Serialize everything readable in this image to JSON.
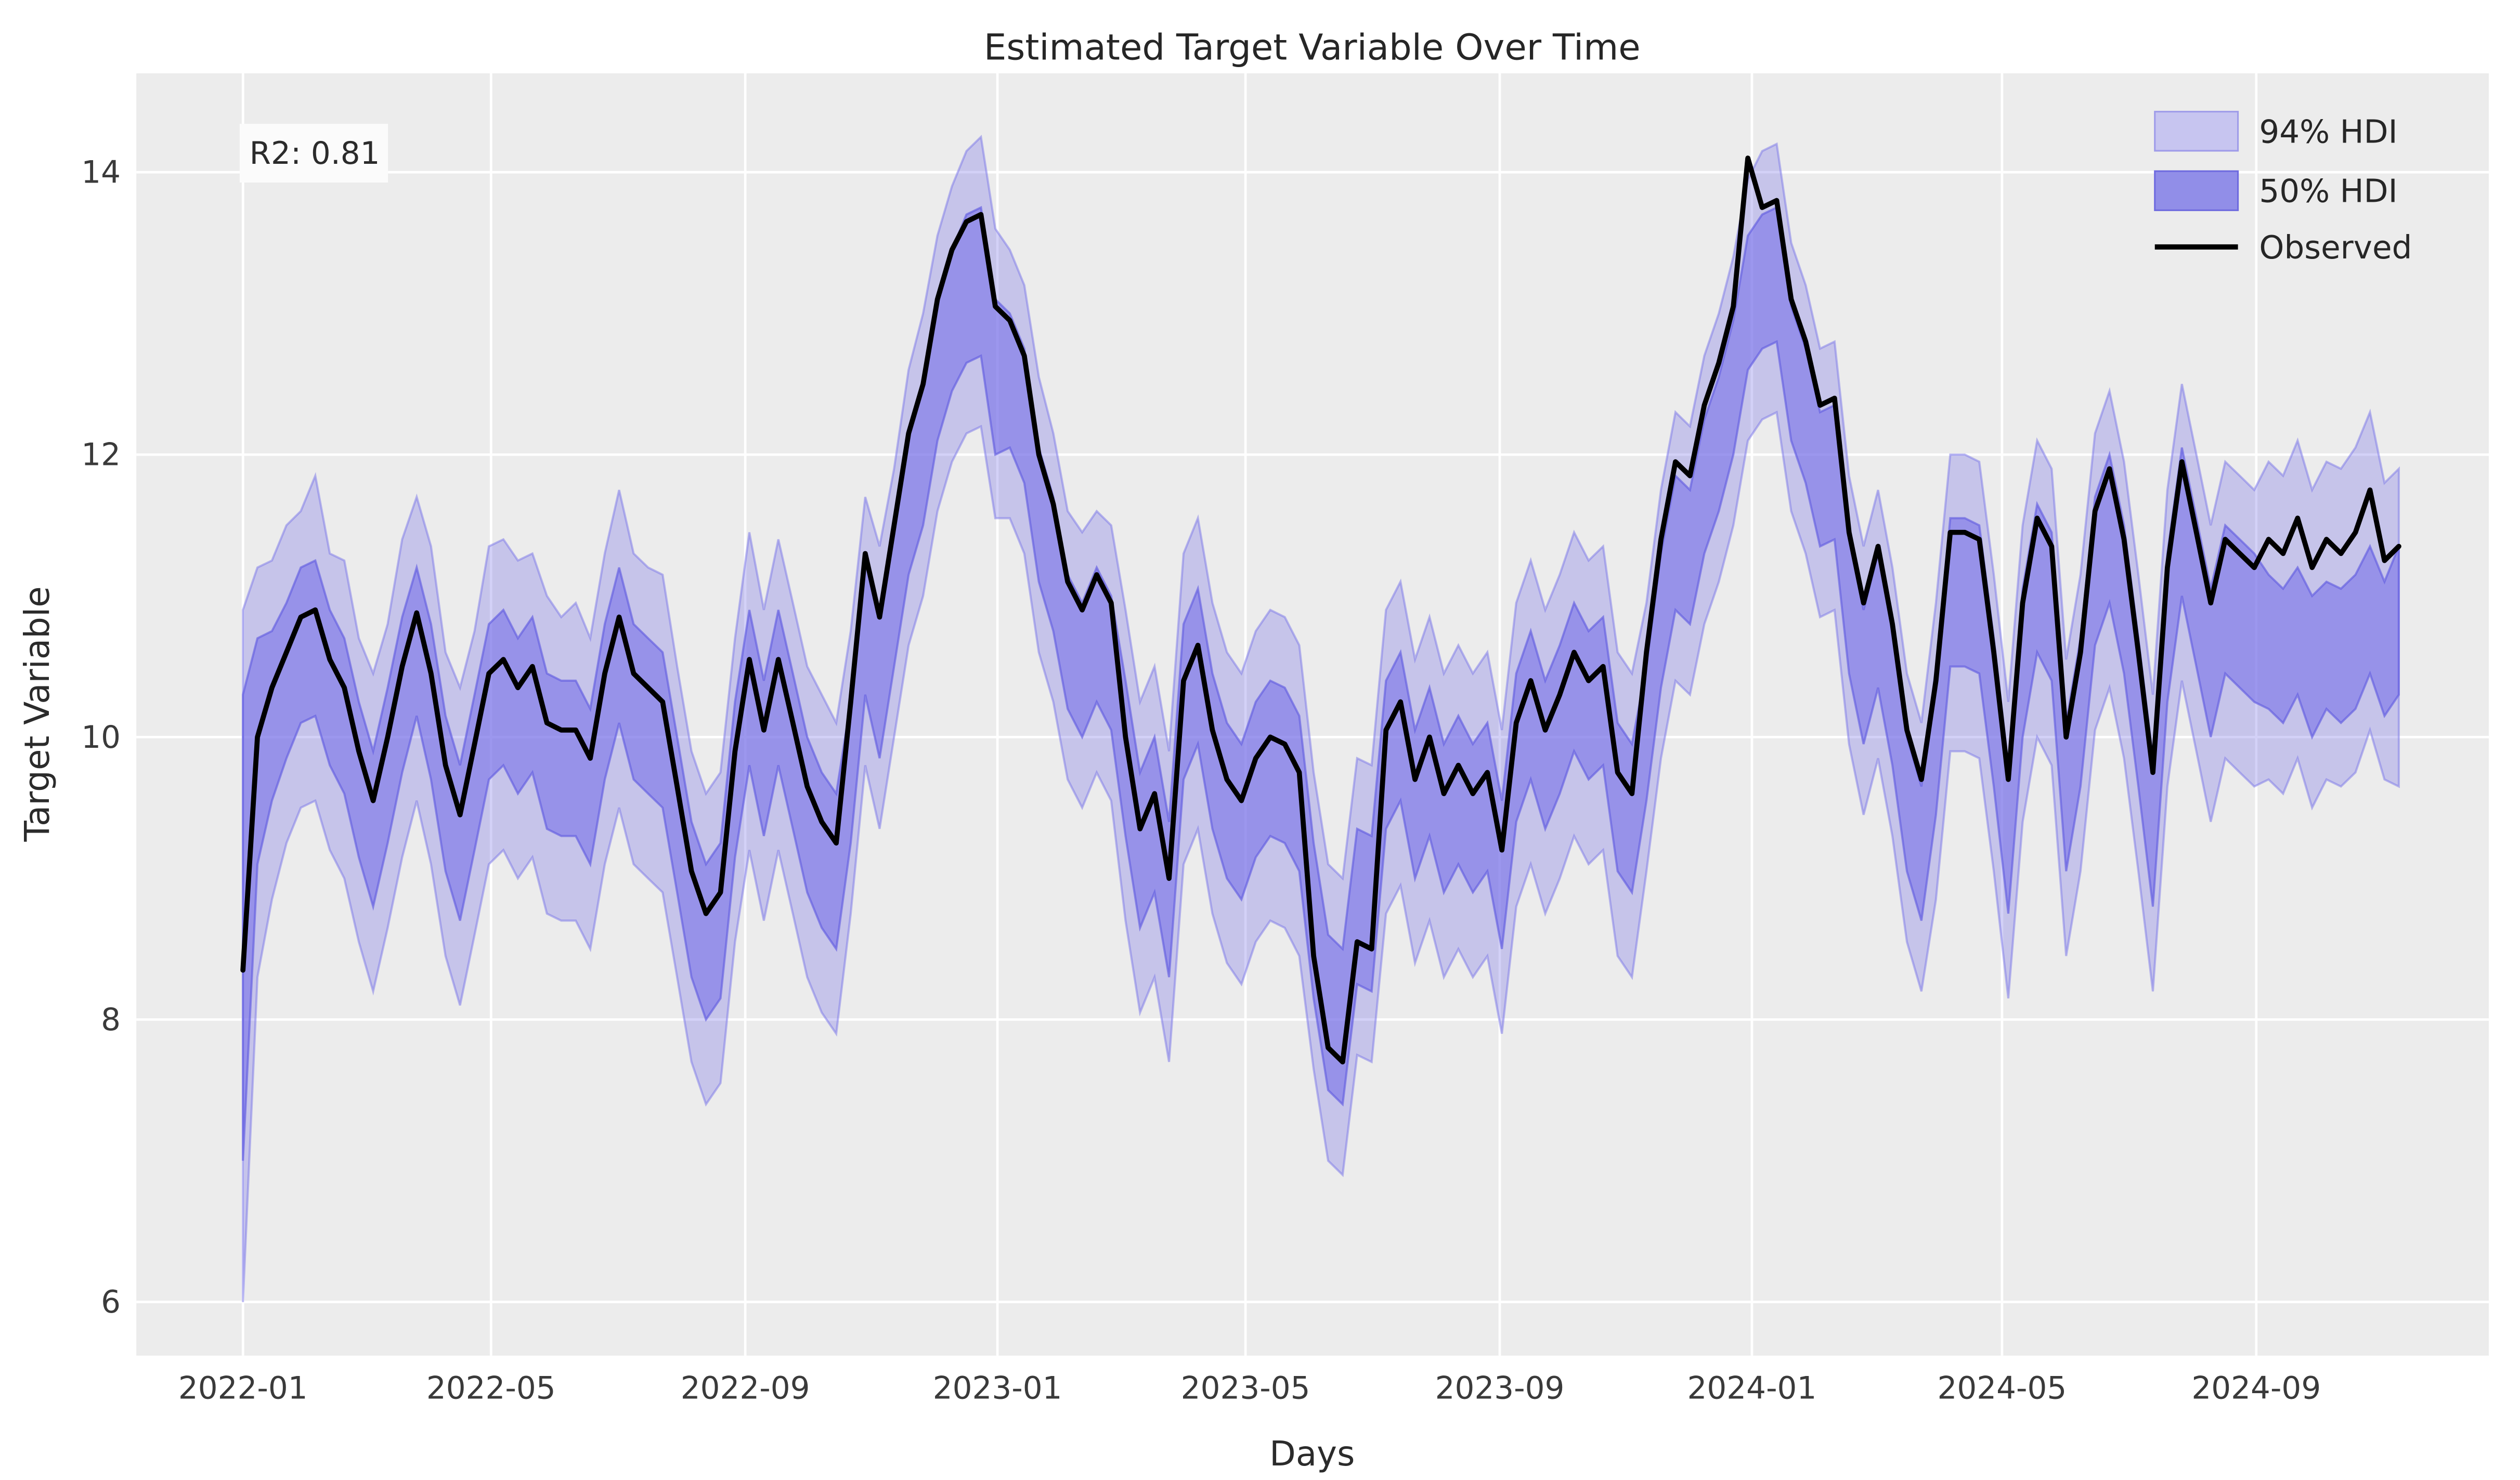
{
  "title": "Estimated Target Variable Over Time",
  "annotation": {
    "r2_label": "R2: 0.81"
  },
  "axes": {
    "x_label": "Days",
    "y_label": "Target Variable",
    "x_tick_labels": [
      "2022-01",
      "2022-05",
      "2022-09",
      "2023-01",
      "2023-05",
      "2023-09",
      "2024-01",
      "2024-05",
      "2024-09"
    ],
    "y_tick_labels": [
      "6",
      "8",
      "10",
      "12",
      "14"
    ]
  },
  "legend": {
    "items": [
      {
        "label": "94% HDI",
        "type": "band",
        "fill": "#c7c5f0",
        "stroke": "#9f9ce9"
      },
      {
        "label": "50% HDI",
        "type": "band",
        "fill": "#918ee8",
        "stroke": "#6f6bdf"
      },
      {
        "label": "Observed",
        "type": "line",
        "color": "#000000"
      }
    ]
  },
  "colors": {
    "figure_bg": "#ffffff",
    "plot_bg": "#ececec",
    "grid": "#ffffff",
    "observed": "#000000",
    "band94_fill": "rgba(125,119,233,0.34)",
    "band94_edge": "rgba(122,118,231,0.50)",
    "band50_fill": "rgba(122,115,233,0.62)",
    "band50_edge": "rgba(98,94,224,0.65)",
    "r2_box_bg": "#fbfbfb"
  },
  "chart_data": {
    "type": "line",
    "title": "Estimated Target Variable Over Time",
    "xlabel": "Days",
    "ylabel": "Target Variable",
    "x_start_date": "2022-01-01",
    "x_step_days": 7,
    "x_tick_days": [
      0,
      120,
      243,
      365,
      485,
      608,
      730,
      851,
      974
    ],
    "x_tick_labels": [
      "2022-01",
      "2022-05",
      "2022-09",
      "2023-01",
      "2023-05",
      "2023-09",
      "2024-01",
      "2024-05",
      "2024-09"
    ],
    "y_ticks": [
      6,
      8,
      10,
      12,
      14
    ],
    "ylim": [
      5.62,
      14.7
    ],
    "xlim_days": [
      -51.6,
      1086.5
    ],
    "grid": true,
    "legend_position": "upper right",
    "series": [
      {
        "name": "Observed",
        "values": [
          8.35,
          10.0,
          10.35,
          10.6,
          10.85,
          10.9,
          10.55,
          10.35,
          9.9,
          9.55,
          10.0,
          10.5,
          10.88,
          10.45,
          9.8,
          9.45,
          9.95,
          10.45,
          10.55,
          10.35,
          10.5,
          10.1,
          10.05,
          10.05,
          9.85,
          10.45,
          10.85,
          10.45,
          10.35,
          10.25,
          9.65,
          9.05,
          8.75,
          8.9,
          9.9,
          10.55,
          10.05,
          10.55,
          10.1,
          9.65,
          9.4,
          9.25,
          10.25,
          11.3,
          10.85,
          11.5,
          12.15,
          12.5,
          13.1,
          13.45,
          13.65,
          13.7,
          13.05,
          12.95,
          12.7,
          12.0,
          11.65,
          11.1,
          10.9,
          11.15,
          10.95,
          10.0,
          9.35,
          9.6,
          9.0,
          10.4,
          10.65,
          10.05,
          9.7,
          9.55,
          9.85,
          10.0,
          9.95,
          9.75,
          8.45,
          7.8,
          7.7,
          8.55,
          8.5,
          10.05,
          10.25,
          9.7,
          10.0,
          9.6,
          9.8,
          9.6,
          9.75,
          9.2,
          10.1,
          10.4,
          10.05,
          10.3,
          10.6,
          10.4,
          10.5,
          9.75,
          9.6,
          10.6,
          11.4,
          11.95,
          11.85,
          12.35,
          12.65,
          13.05,
          14.1,
          13.75,
          13.8,
          13.1,
          12.8,
          12.35,
          12.4,
          11.45,
          10.95,
          11.35,
          10.8,
          10.05,
          9.7,
          10.4,
          11.45,
          11.45,
          11.4,
          10.6,
          9.7,
          10.95,
          11.55,
          11.35,
          10.0,
          10.6,
          11.6,
          11.9,
          11.4,
          10.6,
          9.75,
          11.2,
          11.95,
          11.45,
          10.95,
          11.4,
          11.3,
          11.2,
          11.4,
          11.3,
          11.55,
          11.2,
          11.4,
          11.3,
          11.45,
          11.75,
          11.25,
          11.35
        ]
      },
      {
        "name": "94% HDI upper",
        "values": [
          10.9,
          11.2,
          11.25,
          11.5,
          11.6,
          11.85,
          11.3,
          11.25,
          10.7,
          10.45,
          10.8,
          11.4,
          11.7,
          11.35,
          10.6,
          10.35,
          10.75,
          11.35,
          11.4,
          11.25,
          11.3,
          11.0,
          10.85,
          10.95,
          10.7,
          11.3,
          11.75,
          11.3,
          11.2,
          11.15,
          10.5,
          9.9,
          9.6,
          9.75,
          10.7,
          11.45,
          10.9,
          11.4,
          10.95,
          10.5,
          10.3,
          10.1,
          10.75,
          11.7,
          11.35,
          11.9,
          12.6,
          13.0,
          13.55,
          13.9,
          14.15,
          14.25,
          13.6,
          13.45,
          13.2,
          12.55,
          12.15,
          11.6,
          11.45,
          11.6,
          11.5,
          10.9,
          10.25,
          10.5,
          9.9,
          11.3,
          11.55,
          10.95,
          10.6,
          10.45,
          10.75,
          10.9,
          10.85,
          10.65,
          9.75,
          9.1,
          9.0,
          9.85,
          9.8,
          10.9,
          11.1,
          10.55,
          10.85,
          10.45,
          10.65,
          10.45,
          10.6,
          10.05,
          10.95,
          11.25,
          10.9,
          11.15,
          11.45,
          11.25,
          11.35,
          10.6,
          10.45,
          10.95,
          11.75,
          12.3,
          12.2,
          12.7,
          13.0,
          13.4,
          13.95,
          14.15,
          14.2,
          13.5,
          13.2,
          12.75,
          12.8,
          11.85,
          11.35,
          11.75,
          11.2,
          10.45,
          10.1,
          10.95,
          12.0,
          12.0,
          11.95,
          11.15,
          10.25,
          11.5,
          12.1,
          11.9,
          10.55,
          11.15,
          12.15,
          12.45,
          11.95,
          11.15,
          10.3,
          11.75,
          12.5,
          12.0,
          11.5,
          11.95,
          11.85,
          11.75,
          11.95,
          11.85,
          12.1,
          11.75,
          11.95,
          11.9,
          12.05,
          12.3,
          11.8,
          11.9
        ]
      },
      {
        "name": "94% HDI lower",
        "values": [
          6.0,
          8.3,
          8.85,
          9.25,
          9.5,
          9.55,
          9.2,
          9.0,
          8.55,
          8.2,
          8.65,
          9.15,
          9.55,
          9.1,
          8.45,
          8.1,
          8.6,
          9.1,
          9.2,
          9.0,
          9.15,
          8.75,
          8.7,
          8.7,
          8.5,
          9.1,
          9.5,
          9.1,
          9.0,
          8.9,
          8.3,
          7.7,
          7.4,
          7.55,
          8.55,
          9.2,
          8.7,
          9.2,
          8.75,
          8.3,
          8.05,
          7.9,
          8.75,
          9.8,
          9.35,
          10.0,
          10.65,
          11.0,
          11.6,
          11.95,
          12.15,
          12.2,
          11.55,
          11.55,
          11.3,
          10.6,
          10.25,
          9.7,
          9.5,
          9.75,
          9.55,
          8.7,
          8.05,
          8.3,
          7.7,
          9.1,
          9.35,
          8.75,
          8.4,
          8.25,
          8.55,
          8.7,
          8.65,
          8.45,
          7.65,
          7.0,
          6.9,
          7.75,
          7.7,
          8.75,
          8.95,
          8.4,
          8.7,
          8.3,
          8.5,
          8.3,
          8.45,
          7.9,
          8.8,
          9.1,
          8.75,
          9.0,
          9.3,
          9.1,
          9.2,
          8.45,
          8.3,
          9.05,
          9.85,
          10.4,
          10.3,
          10.8,
          11.1,
          11.5,
          12.1,
          12.25,
          12.3,
          11.6,
          11.3,
          10.85,
          10.9,
          9.95,
          9.45,
          9.85,
          9.3,
          8.55,
          8.2,
          8.85,
          9.9,
          9.9,
          9.85,
          9.05,
          8.15,
          9.4,
          10.0,
          9.8,
          8.45,
          9.05,
          10.05,
          10.35,
          9.85,
          9.05,
          8.2,
          9.65,
          10.4,
          9.9,
          9.4,
          9.85,
          9.75,
          9.65,
          9.7,
          9.6,
          9.85,
          9.5,
          9.7,
          9.65,
          9.75,
          10.05,
          9.7,
          9.65
        ]
      },
      {
        "name": "50% HDI upper",
        "values": [
          10.3,
          10.7,
          10.75,
          10.95,
          11.2,
          11.25,
          10.9,
          10.7,
          10.25,
          9.9,
          10.35,
          10.85,
          11.2,
          10.8,
          10.15,
          9.8,
          10.3,
          10.8,
          10.9,
          10.7,
          10.85,
          10.45,
          10.4,
          10.4,
          10.2,
          10.8,
          11.2,
          10.8,
          10.7,
          10.6,
          10.0,
          9.4,
          9.1,
          9.25,
          10.25,
          10.9,
          10.4,
          10.9,
          10.45,
          10.0,
          9.75,
          9.6,
          10.25,
          11.3,
          10.85,
          11.5,
          12.15,
          12.5,
          13.1,
          13.45,
          13.7,
          13.75,
          13.1,
          13.0,
          12.75,
          12.05,
          11.7,
          11.15,
          10.95,
          11.2,
          11.0,
          10.4,
          9.75,
          10.0,
          9.4,
          10.8,
          11.05,
          10.45,
          10.1,
          9.95,
          10.25,
          10.4,
          10.35,
          10.15,
          9.25,
          8.6,
          8.5,
          9.35,
          9.3,
          10.4,
          10.6,
          10.05,
          10.35,
          9.95,
          10.15,
          9.95,
          10.1,
          9.55,
          10.45,
          10.75,
          10.4,
          10.65,
          10.95,
          10.75,
          10.85,
          10.1,
          9.95,
          10.5,
          11.3,
          11.85,
          11.75,
          12.25,
          12.55,
          12.95,
          13.55,
          13.7,
          13.75,
          13.05,
          12.75,
          12.3,
          12.35,
          11.4,
          10.9,
          11.3,
          10.75,
          10.0,
          9.65,
          10.5,
          11.55,
          11.55,
          11.5,
          10.7,
          9.8,
          11.05,
          11.65,
          11.45,
          10.1,
          10.7,
          11.7,
          12.0,
          11.5,
          10.7,
          9.85,
          11.3,
          12.05,
          11.55,
          11.05,
          11.5,
          11.4,
          11.3,
          11.15,
          11.05,
          11.2,
          11.0,
          11.1,
          11.05,
          11.15,
          11.35,
          11.1,
          11.35
        ]
      },
      {
        "name": "50% HDI lower",
        "values": [
          7.0,
          9.1,
          9.55,
          9.85,
          10.1,
          10.15,
          9.8,
          9.6,
          9.15,
          8.8,
          9.25,
          9.75,
          10.15,
          9.7,
          9.05,
          8.7,
          9.2,
          9.7,
          9.8,
          9.6,
          9.75,
          9.35,
          9.3,
          9.3,
          9.1,
          9.7,
          10.1,
          9.7,
          9.6,
          9.5,
          8.9,
          8.3,
          8.0,
          8.15,
          9.15,
          9.8,
          9.3,
          9.8,
          9.35,
          8.9,
          8.65,
          8.5,
          9.25,
          10.3,
          9.85,
          10.5,
          11.15,
          11.5,
          12.1,
          12.45,
          12.65,
          12.7,
          12.0,
          12.05,
          11.8,
          11.1,
          10.75,
          10.2,
          10.0,
          10.25,
          10.05,
          9.3,
          8.65,
          8.9,
          8.3,
          9.7,
          9.95,
          9.35,
          9.0,
          8.85,
          9.15,
          9.3,
          9.25,
          9.05,
          8.15,
          7.5,
          7.4,
          8.25,
          8.2,
          9.35,
          9.55,
          9.0,
          9.3,
          8.9,
          9.1,
          8.9,
          9.05,
          8.5,
          9.4,
          9.7,
          9.35,
          9.6,
          9.9,
          9.7,
          9.8,
          9.05,
          8.9,
          9.55,
          10.35,
          10.9,
          10.8,
          11.3,
          11.6,
          12.0,
          12.6,
          12.75,
          12.8,
          12.1,
          11.8,
          11.35,
          11.4,
          10.45,
          9.95,
          10.35,
          9.8,
          9.05,
          8.7,
          9.45,
          10.5,
          10.5,
          10.45,
          9.65,
          8.75,
          10.0,
          10.6,
          10.4,
          9.05,
          9.65,
          10.65,
          10.95,
          10.45,
          9.65,
          8.8,
          10.25,
          11.0,
          10.5,
          10.0,
          10.45,
          10.35,
          10.25,
          10.2,
          10.1,
          10.3,
          10.0,
          10.2,
          10.1,
          10.2,
          10.45,
          10.15,
          10.3
        ]
      }
    ]
  }
}
